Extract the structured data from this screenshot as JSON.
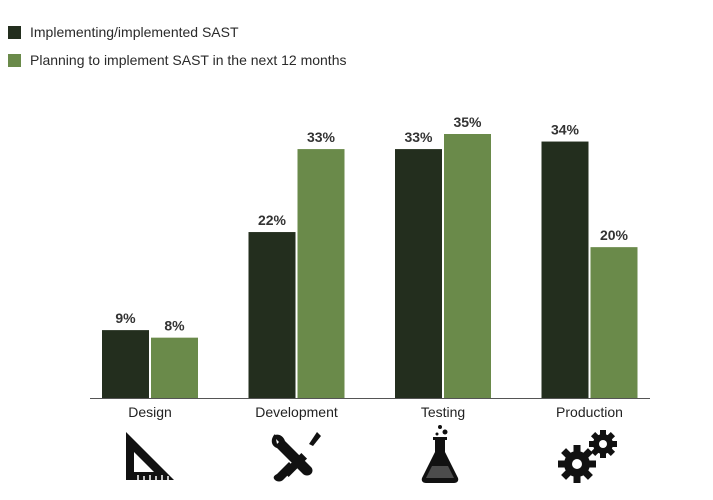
{
  "colors": {
    "implementing": "#232e1e",
    "planning": "#6a8a4a",
    "axis": "#555555"
  },
  "legend": [
    {
      "label": "Implementing/implemented SAST",
      "color": "#232e1e"
    },
    {
      "label": "Planning to implement SAST in the next 12 months",
      "color": "#6a8a4a"
    }
  ],
  "chart_data": {
    "type": "bar",
    "categories": [
      "Design",
      "Development",
      "Testing",
      "Production"
    ],
    "series": [
      {
        "name": "Implementing/implemented SAST",
        "values": [
          9,
          22,
          33,
          34
        ],
        "labels": [
          "9%",
          "22%",
          "33%",
          "34%"
        ]
      },
      {
        "name": "Planning to implement SAST in the next 12 months",
        "values": [
          8,
          33,
          35,
          20
        ],
        "labels": [
          "8%",
          "33%",
          "35%",
          "20%"
        ]
      }
    ],
    "title": "",
    "xlabel": "",
    "ylabel": "",
    "ylim": [
      0,
      35
    ],
    "grid": false,
    "legend_position": "top-left"
  },
  "icons": [
    "set-square-icon",
    "wrench-screwdriver-icon",
    "flask-icon",
    "gears-icon"
  ]
}
